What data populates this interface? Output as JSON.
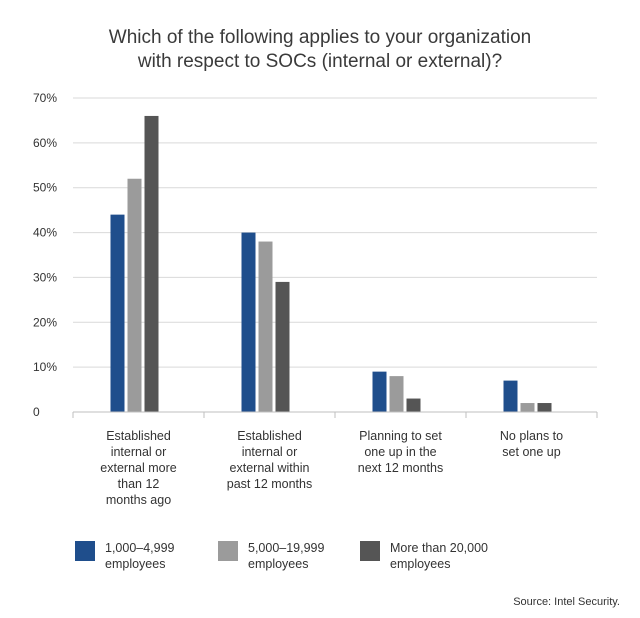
{
  "chart_data": {
    "type": "bar",
    "title_lines": [
      "Which of the following applies to your organization",
      "with respect to SOCs (internal or external)?"
    ],
    "categories": [
      [
        "Established",
        "internal or",
        "external more",
        "than 12",
        "months ago"
      ],
      [
        "Established",
        "internal or",
        "external within",
        "past 12 months"
      ],
      [
        "Planning to set",
        "one up in the",
        "next 12 months"
      ],
      [
        "No plans to",
        "set one up"
      ]
    ],
    "series": [
      {
        "name": "1,000–4,999 employees",
        "legend_lines": [
          "1,000–4,999",
          "employees"
        ],
        "color": "#1f4e8c",
        "values": [
          44,
          40,
          9,
          7
        ]
      },
      {
        "name": "5,000–19,999 employees",
        "legend_lines": [
          "5,000–19,999",
          "employees"
        ],
        "color": "#9b9b9b",
        "values": [
          52,
          38,
          8,
          2
        ]
      },
      {
        "name": "More than 20,000 employees",
        "legend_lines": [
          "More than 20,000",
          "employees"
        ],
        "color": "#555555",
        "values": [
          66,
          29,
          3,
          2
        ]
      }
    ],
    "ylim": [
      0,
      70
    ],
    "yticks": [
      {
        "value": 0,
        "label": "0"
      },
      {
        "value": 10,
        "label": "10%"
      },
      {
        "value": 20,
        "label": "20%"
      },
      {
        "value": 30,
        "label": "30%"
      },
      {
        "value": 40,
        "label": "40%"
      },
      {
        "value": 50,
        "label": "50%"
      },
      {
        "value": 60,
        "label": "60%"
      },
      {
        "value": 70,
        "label": "70%"
      }
    ],
    "grid": true,
    "legend_position": "bottom",
    "source": "Source: Intel Security."
  }
}
